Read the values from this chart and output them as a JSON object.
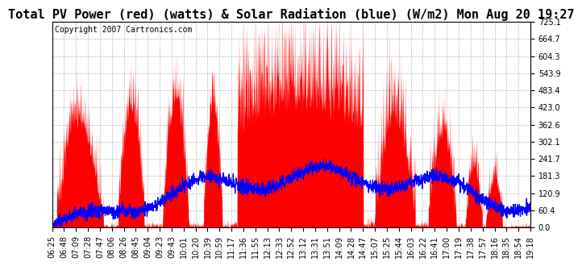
{
  "title": "Total PV Power (red) (watts) & Solar Radiation (blue) (W/m2) Mon Aug 20 19:27",
  "copyright": "Copyright 2007 Cartronics.com",
  "ylim": [
    0.0,
    725.1
  ],
  "yticks": [
    0.0,
    60.4,
    120.9,
    181.3,
    241.7,
    302.1,
    362.6,
    423.0,
    483.4,
    543.9,
    604.3,
    664.7,
    725.1
  ],
  "xtick_labels": [
    "06:25",
    "06:48",
    "07:09",
    "07:28",
    "07:47",
    "08:06",
    "08:26",
    "08:45",
    "09:04",
    "09:23",
    "09:43",
    "10:01",
    "10:20",
    "10:39",
    "10:59",
    "11:17",
    "11:36",
    "11:55",
    "12:13",
    "12:33",
    "12:52",
    "13:12",
    "13:31",
    "13:51",
    "14:09",
    "14:28",
    "14:47",
    "15:07",
    "15:25",
    "15:44",
    "16:03",
    "16:22",
    "16:41",
    "17:00",
    "17:19",
    "17:38",
    "17:57",
    "18:16",
    "18:35",
    "18:54",
    "19:18"
  ],
  "bg_color": "#ffffff",
  "grid_color": "#aaaaaa",
  "red_color": "#ff0000",
  "blue_color": "#0000ff",
  "title_fontsize": 11,
  "tick_fontsize": 7,
  "copyright_fontsize": 7,
  "n_points": 2000
}
